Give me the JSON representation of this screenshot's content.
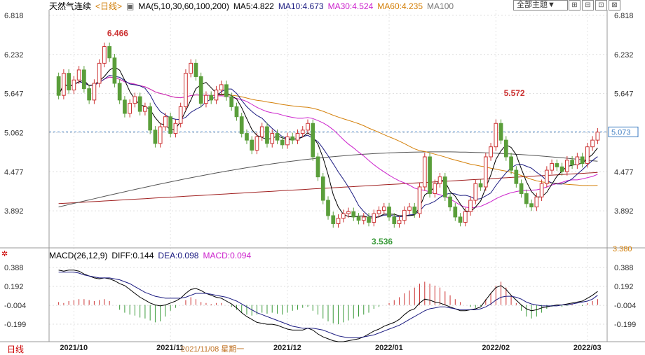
{
  "header": {
    "name": "天然气连续",
    "period_tag": "<日线>",
    "ma_group": "MA(5,10,30,60,100,200)",
    "ma5": "MA5:4.822",
    "ma10": "MA10:4.673",
    "ma30": "MA30:4.524",
    "ma60": "MA60:4.235",
    "ma100": "MA100",
    "theme_select": "全部主题▼"
  },
  "macd_header": {
    "label": "MACD(26,12,9)",
    "diff": "DIFF:0.144",
    "dea": "DEA:0.098",
    "macd": "MACD:0.094"
  },
  "footer": {
    "period": "日线",
    "cursor_date": "2021/11/08 星期一"
  },
  "colors": {
    "up": "#cc3333",
    "down": "#5a9e3a",
    "ma5": "#000000",
    "ma10": "#1a1a80",
    "ma30": "#cc22cc",
    "ma60": "#d4800a",
    "ma100": "#555555",
    "ma200": "#a02020",
    "macd_pos": "#cc3333",
    "macd_neg": "#3a9a3a"
  },
  "chart_data": {
    "type": "candlestick",
    "price_ticks": [
      "6.818",
      "6.232",
      "5.647",
      "5.062",
      "4.477",
      "3.892"
    ],
    "price_tick_values": [
      6.818,
      6.232,
      5.647,
      5.062,
      4.477,
      3.892
    ],
    "ylim": [
      3.38,
      6.9
    ],
    "bottom_label": "3.380",
    "last_price_label": "5.073",
    "last_price": 5.073,
    "high_label": "6.466",
    "high_index": 9,
    "high_value": 6.466,
    "high2_label": "5.572",
    "high2_index": 87,
    "high2_value": 5.572,
    "low_label": "3.536",
    "low_index": 61,
    "low_value": 3.536,
    "x_ticks": [
      {
        "label": "2021/10",
        "index": 3
      },
      {
        "label": "2021/11",
        "index": 22
      },
      {
        "label": "2021/12",
        "index": 45
      },
      {
        "label": "2022/01",
        "index": 65
      },
      {
        "label": "2022/02",
        "index": 86
      },
      {
        "label": "2022/03",
        "index": 104
      }
    ],
    "macd_ticks": [
      "0.388",
      "0.192",
      "-0.004",
      "-0.199"
    ],
    "macd_tick_values": [
      0.388,
      0.192,
      -0.004,
      -0.199
    ],
    "macd_ylim": [
      -0.38,
      0.46
    ],
    "close": [
      5.62,
      5.95,
      5.7,
      5.85,
      6.0,
      5.72,
      5.55,
      5.8,
      6.1,
      6.35,
      6.18,
      5.8,
      5.55,
      5.35,
      5.5,
      5.6,
      5.38,
      5.45,
      5.1,
      4.9,
      5.15,
      5.3,
      5.05,
      5.2,
      5.45,
      5.95,
      6.1,
      5.9,
      5.5,
      5.62,
      5.55,
      5.7,
      5.78,
      5.6,
      5.45,
      5.3,
      5.05,
      4.95,
      4.8,
      5.0,
      5.15,
      4.9,
      5.05,
      4.95,
      4.88,
      5.0,
      4.95,
      5.05,
      5.1,
      5.2,
      4.7,
      4.4,
      4.05,
      3.82,
      3.7,
      3.78,
      3.85,
      3.88,
      3.8,
      3.75,
      3.8,
      3.72,
      3.85,
      3.9,
      3.95,
      3.8,
      3.7,
      3.75,
      3.9,
      3.95,
      3.85,
      4.25,
      4.7,
      4.15,
      4.3,
      4.4,
      4.1,
      3.95,
      3.8,
      3.72,
      3.88,
      4.05,
      4.3,
      4.25,
      4.7,
      4.85,
      5.2,
      4.95,
      4.7,
      4.5,
      4.3,
      4.15,
      4.0,
      3.95,
      4.1,
      4.3,
      4.5,
      4.6,
      4.55,
      4.48,
      4.65,
      4.58,
      4.7,
      4.6,
      4.85,
      4.95,
      5.07
    ],
    "open": [
      5.9,
      5.62,
      5.95,
      5.7,
      5.85,
      6.0,
      5.72,
      5.55,
      5.8,
      6.1,
      6.35,
      6.18,
      5.8,
      5.55,
      5.35,
      5.5,
      5.6,
      5.38,
      5.45,
      5.1,
      4.9,
      5.15,
      5.3,
      5.05,
      5.2,
      5.45,
      5.95,
      6.1,
      5.9,
      5.5,
      5.62,
      5.55,
      5.7,
      5.78,
      5.6,
      5.45,
      5.3,
      5.05,
      4.95,
      4.8,
      5.0,
      5.15,
      4.9,
      5.05,
      4.95,
      4.88,
      5.0,
      4.95,
      5.05,
      5.1,
      5.2,
      4.7,
      4.4,
      4.05,
      3.82,
      3.7,
      3.78,
      3.85,
      3.88,
      3.8,
      3.75,
      3.8,
      3.72,
      3.85,
      3.9,
      3.95,
      3.8,
      3.7,
      3.75,
      3.9,
      3.95,
      3.85,
      4.25,
      4.7,
      4.15,
      4.3,
      4.4,
      4.1,
      3.95,
      3.8,
      3.72,
      3.88,
      4.05,
      4.3,
      4.25,
      4.7,
      4.85,
      5.2,
      4.95,
      4.7,
      4.5,
      4.3,
      4.15,
      4.0,
      3.95,
      4.1,
      4.3,
      4.5,
      4.6,
      4.55,
      4.48,
      4.65,
      4.58,
      4.7,
      4.6,
      4.85,
      4.95
    ],
    "macd_hist": [
      0.03,
      0.02,
      0.04,
      0.05,
      0.06,
      0.06,
      0.05,
      0.04,
      0.05,
      0.06,
      0.04,
      0.0,
      -0.05,
      -0.08,
      -0.1,
      -0.11,
      -0.13,
      -0.14,
      -0.16,
      -0.18,
      -0.17,
      -0.12,
      -0.06,
      -0.03,
      0.0,
      0.05,
      0.08,
      0.06,
      0.03,
      0.02,
      0.01,
      0.02,
      0.02,
      0.0,
      -0.02,
      -0.05,
      -0.08,
      -0.1,
      -0.11,
      -0.1,
      -0.08,
      -0.09,
      -0.08,
      -0.09,
      -0.1,
      -0.08,
      -0.06,
      -0.05,
      -0.03,
      -0.02,
      -0.06,
      -0.1,
      -0.14,
      -0.17,
      -0.19,
      -0.2,
      -0.18,
      -0.16,
      -0.14,
      -0.12,
      -0.1,
      -0.08,
      -0.04,
      -0.02,
      0.0,
      0.02,
      0.05,
      0.08,
      0.12,
      0.15,
      0.18,
      0.22,
      0.24,
      0.22,
      0.2,
      0.18,
      0.14,
      0.1,
      0.06,
      0.03,
      0.0,
      -0.02,
      -0.03,
      -0.01,
      0.06,
      0.12,
      0.2,
      0.24,
      0.18,
      0.1,
      0.02,
      -0.06,
      -0.12,
      -0.14,
      -0.12,
      -0.08,
      -0.04,
      -0.02,
      -0.01,
      -0.02,
      -0.01,
      0.01,
      0.0,
      -0.01,
      0.02,
      0.04,
      0.06
    ],
    "diff": [
      0.36,
      0.35,
      0.36,
      0.36,
      0.35,
      0.32,
      0.3,
      0.28,
      0.27,
      0.28,
      0.27,
      0.25,
      0.22,
      0.2,
      0.16,
      0.12,
      0.08,
      0.05,
      0.02,
      0.0,
      -0.01,
      0.0,
      0.02,
      0.04,
      0.07,
      0.12,
      0.16,
      0.17,
      0.15,
      0.12,
      0.1,
      0.08,
      0.07,
      0.04,
      0.01,
      -0.03,
      -0.08,
      -0.12,
      -0.15,
      -0.18,
      -0.19,
      -0.2,
      -0.2,
      -0.21,
      -0.23,
      -0.25,
      -0.26,
      -0.26,
      -0.26,
      -0.24,
      -0.26,
      -0.3,
      -0.33,
      -0.35,
      -0.37,
      -0.38,
      -0.38,
      -0.37,
      -0.36,
      -0.35,
      -0.33,
      -0.3,
      -0.27,
      -0.25,
      -0.22,
      -0.2,
      -0.18,
      -0.15,
      -0.1,
      -0.06,
      -0.04,
      0.02,
      0.06,
      0.05,
      0.03,
      0.02,
      0.0,
      -0.02,
      -0.04,
      -0.06,
      -0.06,
      -0.05,
      -0.04,
      -0.02,
      0.05,
      0.12,
      0.18,
      0.2,
      0.16,
      0.1,
      0.05,
      0.0,
      -0.04,
      -0.06,
      -0.05,
      -0.03,
      -0.02,
      -0.01,
      0.0,
      0.0,
      0.01,
      0.02,
      0.03,
      0.04,
      0.07,
      0.1,
      0.14
    ],
    "dea": [
      0.34,
      0.34,
      0.34,
      0.34,
      0.33,
      0.31,
      0.3,
      0.29,
      0.28,
      0.28,
      0.28,
      0.27,
      0.26,
      0.24,
      0.22,
      0.19,
      0.16,
      0.13,
      0.11,
      0.09,
      0.08,
      0.07,
      0.07,
      0.07,
      0.07,
      0.08,
      0.1,
      0.12,
      0.12,
      0.12,
      0.11,
      0.1,
      0.09,
      0.08,
      0.06,
      0.04,
      0.01,
      -0.02,
      -0.05,
      -0.08,
      -0.1,
      -0.12,
      -0.14,
      -0.16,
      -0.18,
      -0.2,
      -0.22,
      -0.23,
      -0.24,
      -0.24,
      -0.24,
      -0.25,
      -0.26,
      -0.28,
      -0.3,
      -0.32,
      -0.33,
      -0.34,
      -0.34,
      -0.34,
      -0.33,
      -0.32,
      -0.31,
      -0.29,
      -0.27,
      -0.25,
      -0.23,
      -0.21,
      -0.18,
      -0.15,
      -0.12,
      -0.09,
      -0.06,
      -0.04,
      -0.03,
      -0.02,
      -0.02,
      -0.03,
      -0.04,
      -0.05,
      -0.05,
      -0.05,
      -0.05,
      -0.04,
      -0.02,
      0.01,
      0.05,
      0.08,
      0.09,
      0.09,
      0.08,
      0.06,
      0.03,
      0.01,
      0.0,
      -0.01,
      -0.01,
      -0.01,
      -0.01,
      0.0,
      0.0,
      0.01,
      0.02,
      0.03,
      0.04,
      0.06,
      0.1
    ]
  }
}
